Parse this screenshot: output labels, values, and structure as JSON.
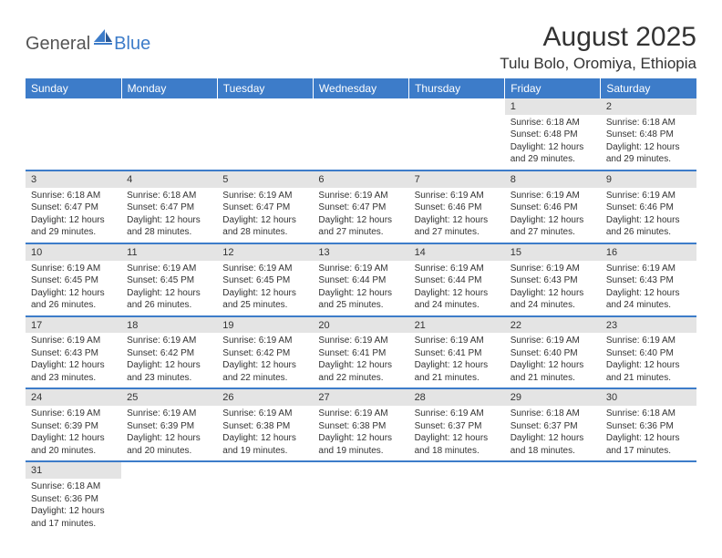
{
  "logo": {
    "word1": "General",
    "word2": "Blue"
  },
  "title": "August 2025",
  "location": "Tulu Bolo, Oromiya, Ethiopia",
  "colors": {
    "accent": "#3d7cc9",
    "daynum_bg": "#e4e4e4",
    "text": "#333333",
    "bg": "#ffffff"
  },
  "day_headers": [
    "Sunday",
    "Monday",
    "Tuesday",
    "Wednesday",
    "Thursday",
    "Friday",
    "Saturday"
  ],
  "weeks": [
    [
      null,
      null,
      null,
      null,
      null,
      {
        "n": "1",
        "sunrise": "6:18 AM",
        "sunset": "6:48 PM",
        "dl": "12 hours and 29 minutes."
      },
      {
        "n": "2",
        "sunrise": "6:18 AM",
        "sunset": "6:48 PM",
        "dl": "12 hours and 29 minutes."
      }
    ],
    [
      {
        "n": "3",
        "sunrise": "6:18 AM",
        "sunset": "6:47 PM",
        "dl": "12 hours and 29 minutes."
      },
      {
        "n": "4",
        "sunrise": "6:18 AM",
        "sunset": "6:47 PM",
        "dl": "12 hours and 28 minutes."
      },
      {
        "n": "5",
        "sunrise": "6:19 AM",
        "sunset": "6:47 PM",
        "dl": "12 hours and 28 minutes."
      },
      {
        "n": "6",
        "sunrise": "6:19 AM",
        "sunset": "6:47 PM",
        "dl": "12 hours and 27 minutes."
      },
      {
        "n": "7",
        "sunrise": "6:19 AM",
        "sunset": "6:46 PM",
        "dl": "12 hours and 27 minutes."
      },
      {
        "n": "8",
        "sunrise": "6:19 AM",
        "sunset": "6:46 PM",
        "dl": "12 hours and 27 minutes."
      },
      {
        "n": "9",
        "sunrise": "6:19 AM",
        "sunset": "6:46 PM",
        "dl": "12 hours and 26 minutes."
      }
    ],
    [
      {
        "n": "10",
        "sunrise": "6:19 AM",
        "sunset": "6:45 PM",
        "dl": "12 hours and 26 minutes."
      },
      {
        "n": "11",
        "sunrise": "6:19 AM",
        "sunset": "6:45 PM",
        "dl": "12 hours and 26 minutes."
      },
      {
        "n": "12",
        "sunrise": "6:19 AM",
        "sunset": "6:45 PM",
        "dl": "12 hours and 25 minutes."
      },
      {
        "n": "13",
        "sunrise": "6:19 AM",
        "sunset": "6:44 PM",
        "dl": "12 hours and 25 minutes."
      },
      {
        "n": "14",
        "sunrise": "6:19 AM",
        "sunset": "6:44 PM",
        "dl": "12 hours and 24 minutes."
      },
      {
        "n": "15",
        "sunrise": "6:19 AM",
        "sunset": "6:43 PM",
        "dl": "12 hours and 24 minutes."
      },
      {
        "n": "16",
        "sunrise": "6:19 AM",
        "sunset": "6:43 PM",
        "dl": "12 hours and 24 minutes."
      }
    ],
    [
      {
        "n": "17",
        "sunrise": "6:19 AM",
        "sunset": "6:43 PM",
        "dl": "12 hours and 23 minutes."
      },
      {
        "n": "18",
        "sunrise": "6:19 AM",
        "sunset": "6:42 PM",
        "dl": "12 hours and 23 minutes."
      },
      {
        "n": "19",
        "sunrise": "6:19 AM",
        "sunset": "6:42 PM",
        "dl": "12 hours and 22 minutes."
      },
      {
        "n": "20",
        "sunrise": "6:19 AM",
        "sunset": "6:41 PM",
        "dl": "12 hours and 22 minutes."
      },
      {
        "n": "21",
        "sunrise": "6:19 AM",
        "sunset": "6:41 PM",
        "dl": "12 hours and 21 minutes."
      },
      {
        "n": "22",
        "sunrise": "6:19 AM",
        "sunset": "6:40 PM",
        "dl": "12 hours and 21 minutes."
      },
      {
        "n": "23",
        "sunrise": "6:19 AM",
        "sunset": "6:40 PM",
        "dl": "12 hours and 21 minutes."
      }
    ],
    [
      {
        "n": "24",
        "sunrise": "6:19 AM",
        "sunset": "6:39 PM",
        "dl": "12 hours and 20 minutes."
      },
      {
        "n": "25",
        "sunrise": "6:19 AM",
        "sunset": "6:39 PM",
        "dl": "12 hours and 20 minutes."
      },
      {
        "n": "26",
        "sunrise": "6:19 AM",
        "sunset": "6:38 PM",
        "dl": "12 hours and 19 minutes."
      },
      {
        "n": "27",
        "sunrise": "6:19 AM",
        "sunset": "6:38 PM",
        "dl": "12 hours and 19 minutes."
      },
      {
        "n": "28",
        "sunrise": "6:19 AM",
        "sunset": "6:37 PM",
        "dl": "12 hours and 18 minutes."
      },
      {
        "n": "29",
        "sunrise": "6:18 AM",
        "sunset": "6:37 PM",
        "dl": "12 hours and 18 minutes."
      },
      {
        "n": "30",
        "sunrise": "6:18 AM",
        "sunset": "6:36 PM",
        "dl": "12 hours and 17 minutes."
      }
    ],
    [
      {
        "n": "31",
        "sunrise": "6:18 AM",
        "sunset": "6:36 PM",
        "dl": "12 hours and 17 minutes."
      },
      null,
      null,
      null,
      null,
      null,
      null
    ]
  ],
  "labels": {
    "sunrise": "Sunrise: ",
    "sunset": "Sunset: ",
    "daylight": "Daylight: "
  }
}
